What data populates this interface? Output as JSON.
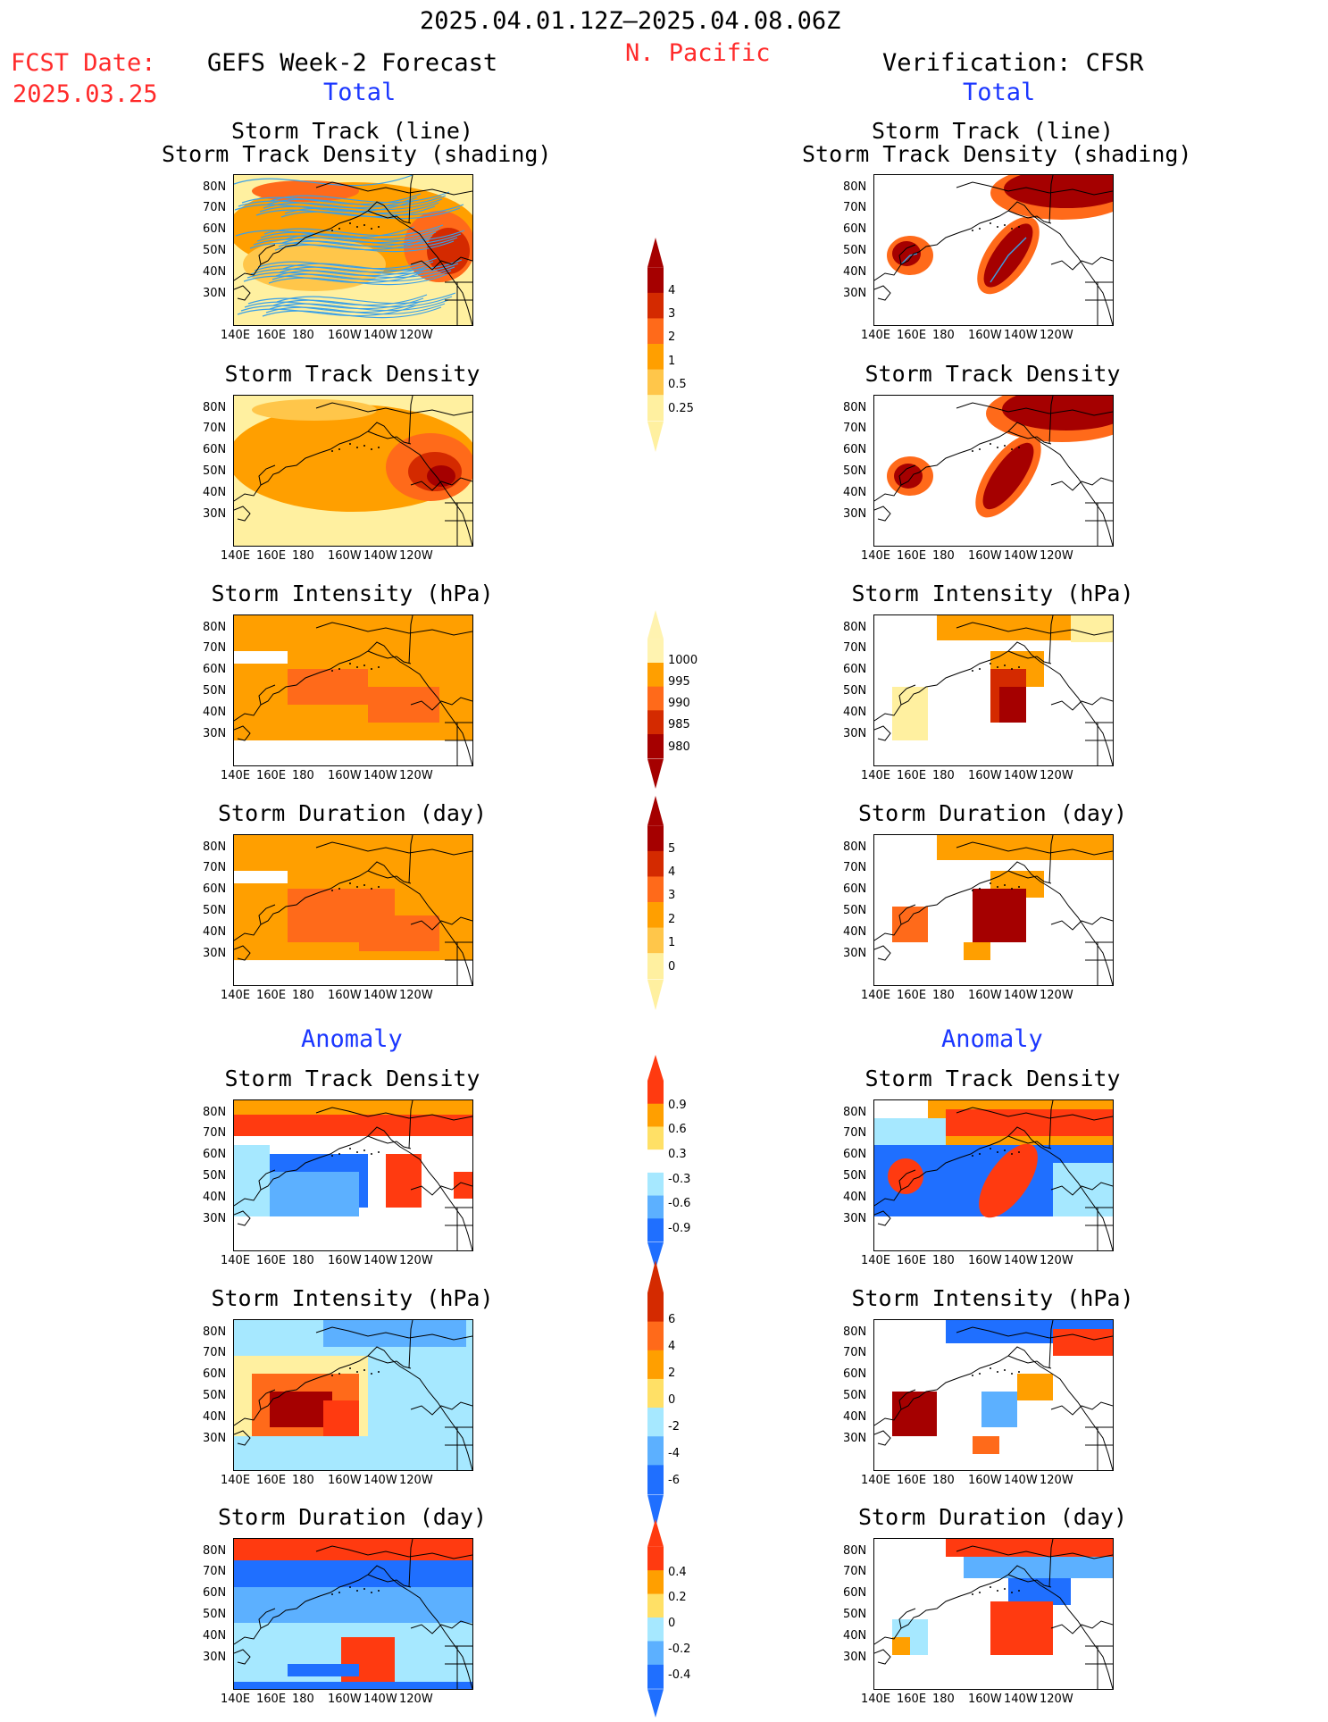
{
  "header": {
    "date_range": "2025.04.01.12Z–2025.04.08.06Z",
    "region": "N. Pacific",
    "fcst_label": "FCST Date:",
    "fcst_date": "2025.03.25",
    "left_title": "GEFS Week-2 Forecast",
    "right_title": "Verification: CFSR",
    "total_label": "Total",
    "anomaly_label": "Anomaly"
  },
  "panel_titles": {
    "track_line": "Storm Track (line)",
    "track_density_shading": "Storm Track Density (shading)",
    "track_density": "Storm Track Density",
    "intensity": "Storm Intensity (hPa)",
    "duration": "Storm Duration (day)"
  },
  "axes": {
    "lat_labels": [
      "80N",
      "70N",
      "60N",
      "50N",
      "40N",
      "30N"
    ],
    "lon_labels": [
      "140E",
      "160E",
      "180",
      "160W",
      "140W",
      "120W"
    ]
  },
  "colorbars": {
    "density_total": {
      "labels": [
        "4",
        "3",
        "2",
        "1",
        "0.5",
        "0.25"
      ],
      "colors": [
        "#a50000",
        "#d42a00",
        "#ff6a1a",
        "#ff9f00",
        "#ffc64a",
        "#fff0a0"
      ]
    },
    "intensity_total": {
      "labels": [
        "1000",
        "995",
        "990",
        "985",
        "980"
      ],
      "colors": [
        "#fff3b0",
        "#ff9f00",
        "#ff6a1a",
        "#d42a00",
        "#a50000"
      ]
    },
    "duration_total": {
      "labels": [
        "5",
        "4",
        "3",
        "2",
        "1",
        "0"
      ],
      "colors": [
        "#a50000",
        "#d42a00",
        "#ff6a1a",
        "#ff9f00",
        "#ffc64a",
        "#fff0a0"
      ]
    },
    "density_anom": {
      "labels": [
        "0.9",
        "0.6",
        "0.3",
        "-0.3",
        "-0.6",
        "-0.9"
      ],
      "colors": [
        "#ff3a10",
        "#ff9f00",
        "#ffe066",
        "#ffffff",
        "#a6e8ff",
        "#5cb0ff",
        "#1f6fff"
      ]
    },
    "intensity_anom": {
      "labels": [
        "6",
        "4",
        "2",
        "0",
        "-2",
        "-4",
        "-6"
      ],
      "colors": [
        "#d42a00",
        "#ff6a1a",
        "#ff9f00",
        "#ffe066",
        "#a6e8ff",
        "#5cb0ff",
        "#1f6fff"
      ]
    },
    "duration_anom": {
      "labels": [
        "0.4",
        "0.2",
        "0",
        "-0.2",
        "-0.4"
      ],
      "colors": [
        "#ff3a10",
        "#ff9f00",
        "#ffe066",
        "#a6e8ff",
        "#5cb0ff",
        "#1f6fff"
      ]
    }
  }
}
